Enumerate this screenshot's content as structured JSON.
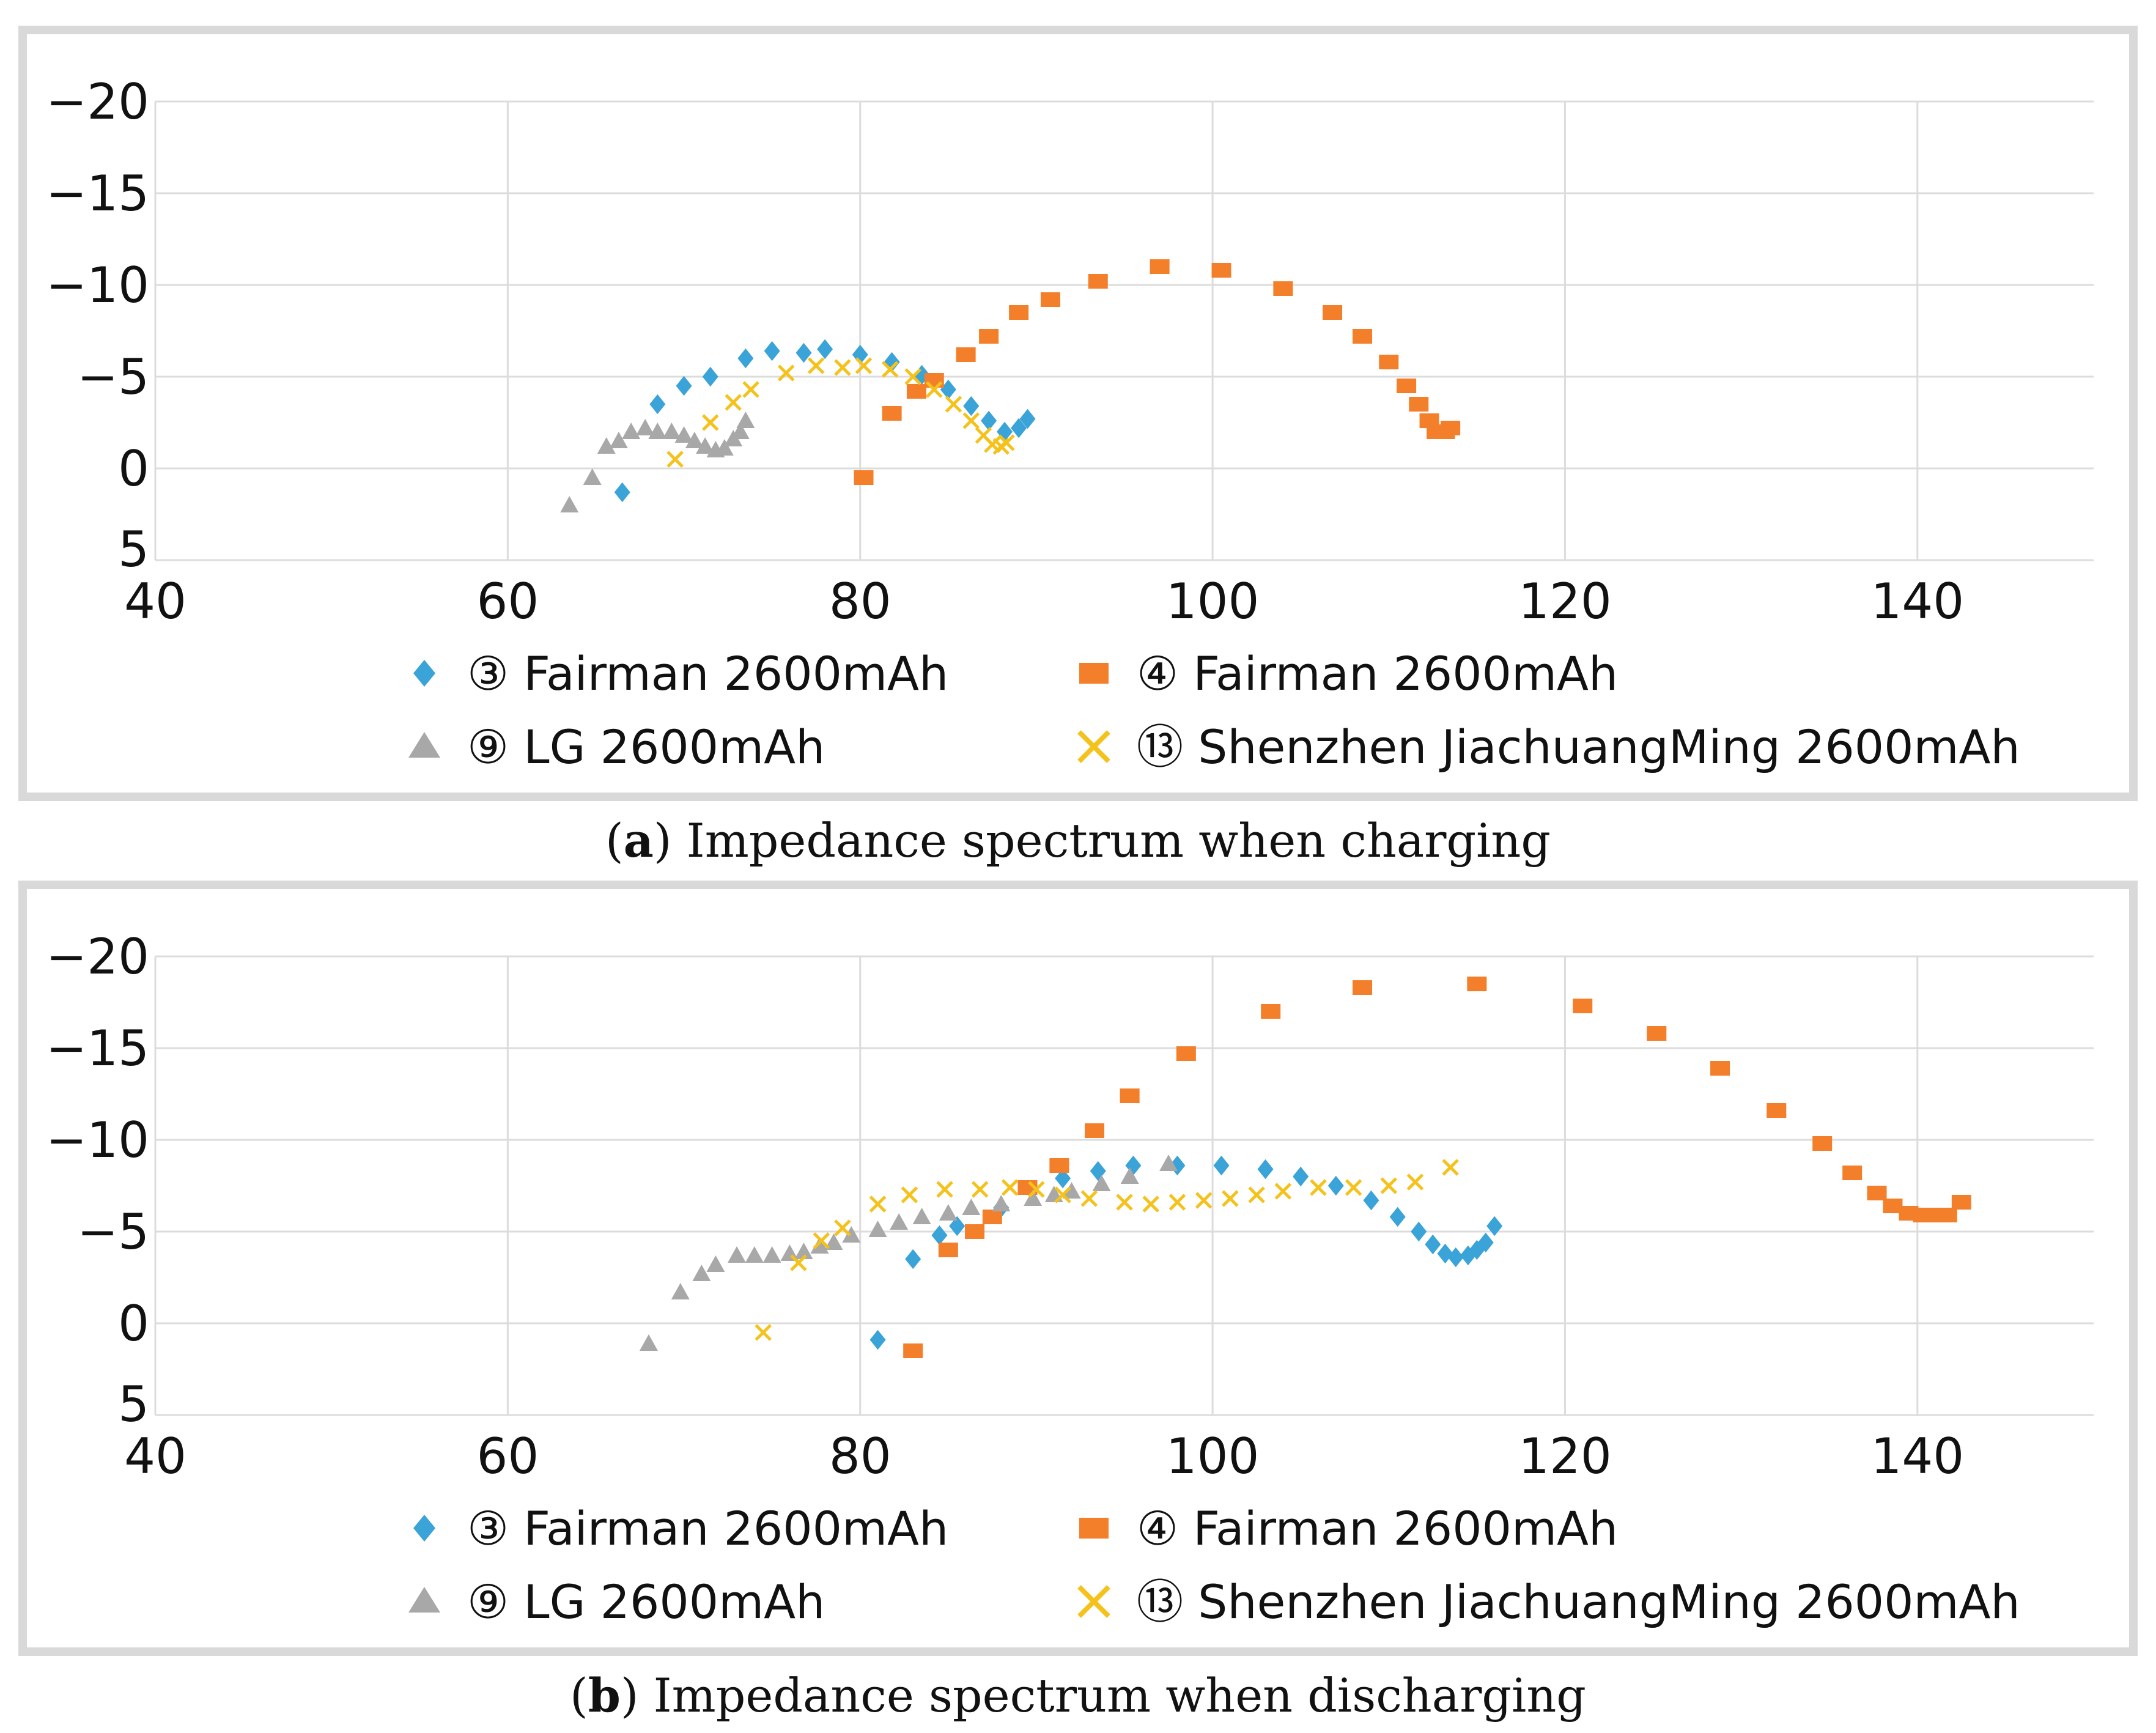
{
  "colors": {
    "fairman3": "#3aa3d8",
    "fairman4": "#f47f2b",
    "lg": "#a8a8a8",
    "shenzhen": "#f5c21b",
    "grid": "#dcdcdc",
    "axis_text": "#111111"
  },
  "icons": {
    "fairman3": "diamond-marker-icon",
    "fairman4": "square-marker-icon",
    "lg": "triangle-marker-icon",
    "shenzhen": "cross-marker-icon"
  },
  "chart_data": [
    {
      "type": "scatter",
      "caption_letter": "a",
      "caption_text": " Impedance spectrum when charging",
      "x_ticks": [
        "40",
        "60",
        "80",
        "100",
        "120",
        "140"
      ],
      "y_ticks": [
        "−20",
        "−15",
        "−10",
        "−5",
        "0",
        "5"
      ],
      "xlim": [
        40,
        150
      ],
      "ylim": [
        -20,
        5
      ],
      "y_inverted": true,
      "grid": true,
      "legend_placement": "bottom",
      "series": [
        {
          "name": "③ Fairman 2600mAh",
          "key": "fairman3",
          "marker": "diamond",
          "points": [
            [
              66.5,
              1.3
            ],
            [
              68.5,
              -3.5
            ],
            [
              70,
              -4.5
            ],
            [
              71.5,
              -5
            ],
            [
              73.5,
              -6
            ],
            [
              75,
              -6.4
            ],
            [
              76.8,
              -6.3
            ],
            [
              78,
              -6.5
            ],
            [
              80,
              -6.2
            ],
            [
              81.8,
              -5.8
            ],
            [
              83.5,
              -5.1
            ],
            [
              85,
              -4.3
            ],
            [
              86.3,
              -3.4
            ],
            [
              87.3,
              -2.6
            ],
            [
              88.2,
              -2
            ],
            [
              89,
              -2.2
            ],
            [
              89.5,
              -2.7
            ]
          ]
        },
        {
          "name": "④ Fairman 2600mAh",
          "key": "fairman4",
          "marker": "square",
          "points": [
            [
              80.2,
              0.5
            ],
            [
              81.8,
              -3
            ],
            [
              83.2,
              -4.2
            ],
            [
              84.2,
              -4.8
            ],
            [
              86,
              -6.2
            ],
            [
              87.3,
              -7.2
            ],
            [
              89,
              -8.5
            ],
            [
              90.8,
              -9.2
            ],
            [
              93.5,
              -10.2
            ],
            [
              97,
              -11
            ],
            [
              100.5,
              -10.8
            ],
            [
              104,
              -9.8
            ],
            [
              106.8,
              -8.5
            ],
            [
              108.5,
              -7.2
            ],
            [
              110,
              -5.8
            ],
            [
              111,
              -4.5
            ],
            [
              111.7,
              -3.5
            ],
            [
              112.3,
              -2.6
            ],
            [
              112.7,
              -2
            ],
            [
              113.2,
              -2
            ],
            [
              113.5,
              -2.2
            ]
          ]
        },
        {
          "name": "⑨ LG 2600mAh",
          "key": "lg",
          "marker": "triangle",
          "points": [
            [
              63.5,
              2
            ],
            [
              64.8,
              0.5
            ],
            [
              65.6,
              -1.2
            ],
            [
              66.3,
              -1.5
            ],
            [
              67,
              -2
            ],
            [
              67.8,
              -2.2
            ],
            [
              68.5,
              -2
            ],
            [
              69.3,
              -2
            ],
            [
              70,
              -1.8
            ],
            [
              70.6,
              -1.5
            ],
            [
              71.2,
              -1.2
            ],
            [
              71.8,
              -1
            ],
            [
              72.3,
              -1.1
            ],
            [
              72.8,
              -1.6
            ],
            [
              73.2,
              -2
            ],
            [
              73.5,
              -2.6
            ]
          ]
        },
        {
          "name": "⑬ Shenzhen JiachuangMing 2600mAh",
          "key": "shenzhen",
          "marker": "cross",
          "points": [
            [
              69.5,
              -0.5
            ],
            [
              71.5,
              -2.5
            ],
            [
              72.8,
              -3.6
            ],
            [
              73.8,
              -4.3
            ],
            [
              75.8,
              -5.2
            ],
            [
              77.5,
              -5.6
            ],
            [
              79,
              -5.5
            ],
            [
              80.2,
              -5.6
            ],
            [
              81.7,
              -5.4
            ],
            [
              83,
              -5
            ],
            [
              84.2,
              -4.3
            ],
            [
              85.3,
              -3.5
            ],
            [
              86.3,
              -2.6
            ],
            [
              87,
              -1.8
            ],
            [
              87.5,
              -1.3
            ],
            [
              88,
              -1.2
            ],
            [
              88.3,
              -1.4
            ]
          ]
        }
      ]
    },
    {
      "type": "scatter",
      "caption_letter": "b",
      "caption_text": " Impedance spectrum when discharging",
      "x_ticks": [
        "40",
        "60",
        "80",
        "100",
        "120",
        "140"
      ],
      "y_ticks": [
        "−20",
        "−15",
        "−10",
        "−5",
        "0",
        "5"
      ],
      "xlim": [
        40,
        150
      ],
      "ylim": [
        -20,
        5
      ],
      "y_inverted": true,
      "grid": true,
      "legend_placement": "bottom",
      "series": [
        {
          "name": "③ Fairman 2600mAh",
          "key": "fairman3",
          "marker": "diamond",
          "points": [
            [
              81,
              0.9
            ],
            [
              83,
              -3.5
            ],
            [
              84.5,
              -4.8
            ],
            [
              85.5,
              -5.3
            ],
            [
              88,
              -6.3
            ],
            [
              91.5,
              -7.9
            ],
            [
              93.5,
              -8.3
            ],
            [
              95.5,
              -8.6
            ],
            [
              98,
              -8.6
            ],
            [
              100.5,
              -8.6
            ],
            [
              103,
              -8.4
            ],
            [
              105,
              -8
            ],
            [
              107,
              -7.5
            ],
            [
              109,
              -6.7
            ],
            [
              110.5,
              -5.8
            ],
            [
              111.7,
              -5
            ],
            [
              112.5,
              -4.3
            ],
            [
              113.2,
              -3.8
            ],
            [
              113.8,
              -3.6
            ],
            [
              114.5,
              -3.7
            ],
            [
              115,
              -4
            ],
            [
              115.5,
              -4.4
            ],
            [
              116,
              -5.3
            ]
          ]
        },
        {
          "name": "④ Fairman 2600mAh",
          "key": "fairman4",
          "marker": "square",
          "points": [
            [
              83,
              1.5
            ],
            [
              85,
              -4
            ],
            [
              86.5,
              -5
            ],
            [
              87.5,
              -5.8
            ],
            [
              89.5,
              -7.4
            ],
            [
              91.3,
              -8.6
            ],
            [
              93.3,
              -10.5
            ],
            [
              95.3,
              -12.4
            ],
            [
              98.5,
              -14.7
            ],
            [
              103.3,
              -17
            ],
            [
              108.5,
              -18.3
            ],
            [
              115,
              -18.5
            ],
            [
              121,
              -17.3
            ],
            [
              125.2,
              -15.8
            ],
            [
              128.8,
              -13.9
            ],
            [
              132,
              -11.6
            ],
            [
              134.6,
              -9.8
            ],
            [
              136.3,
              -8.2
            ],
            [
              137.7,
              -7.1
            ],
            [
              138.6,
              -6.4
            ],
            [
              139.5,
              -6
            ],
            [
              140.3,
              -5.9
            ],
            [
              141,
              -5.9
            ],
            [
              141.7,
              -5.9
            ],
            [
              142.5,
              -6.6
            ]
          ]
        },
        {
          "name": "⑨ LG 2600mAh",
          "key": "lg",
          "marker": "triangle",
          "points": [
            [
              68,
              1.1
            ],
            [
              69.8,
              -1.7
            ],
            [
              71,
              -2.7
            ],
            [
              71.8,
              -3.2
            ],
            [
              73,
              -3.7
            ],
            [
              74,
              -3.7
            ],
            [
              75,
              -3.7
            ],
            [
              76,
              -3.8
            ],
            [
              76.8,
              -3.9
            ],
            [
              77.7,
              -4.2
            ],
            [
              78.5,
              -4.4
            ],
            [
              79.5,
              -4.8
            ],
            [
              81,
              -5.1
            ],
            [
              82.2,
              -5.5
            ],
            [
              83.5,
              -5.8
            ],
            [
              85,
              -6
            ],
            [
              86.3,
              -6.3
            ],
            [
              88,
              -6.5
            ],
            [
              89.8,
              -6.8
            ],
            [
              91,
              -7
            ],
            [
              92,
              -7.2
            ],
            [
              93.7,
              -7.6
            ],
            [
              95.3,
              -8
            ],
            [
              97.5,
              -8.7
            ]
          ]
        },
        {
          "name": "⑬ Shenzhen JiachuangMing 2600mAh",
          "key": "shenzhen",
          "marker": "cross",
          "points": [
            [
              74.5,
              0.5
            ],
            [
              76.5,
              -3.3
            ],
            [
              77.8,
              -4.5
            ],
            [
              79,
              -5.2
            ],
            [
              81,
              -6.5
            ],
            [
              82.8,
              -7
            ],
            [
              84.8,
              -7.3
            ],
            [
              86.8,
              -7.3
            ],
            [
              88.5,
              -7.4
            ],
            [
              90,
              -7.3
            ],
            [
              91.5,
              -7
            ],
            [
              93,
              -6.8
            ],
            [
              95,
              -6.6
            ],
            [
              96.5,
              -6.5
            ],
            [
              98,
              -6.6
            ],
            [
              99.5,
              -6.7
            ],
            [
              101,
              -6.8
            ],
            [
              102.5,
              -7
            ],
            [
              104,
              -7.2
            ],
            [
              106,
              -7.4
            ],
            [
              108,
              -7.4
            ],
            [
              110,
              -7.5
            ],
            [
              111.5,
              -7.7
            ],
            [
              113.5,
              -8.5
            ]
          ]
        }
      ]
    }
  ]
}
